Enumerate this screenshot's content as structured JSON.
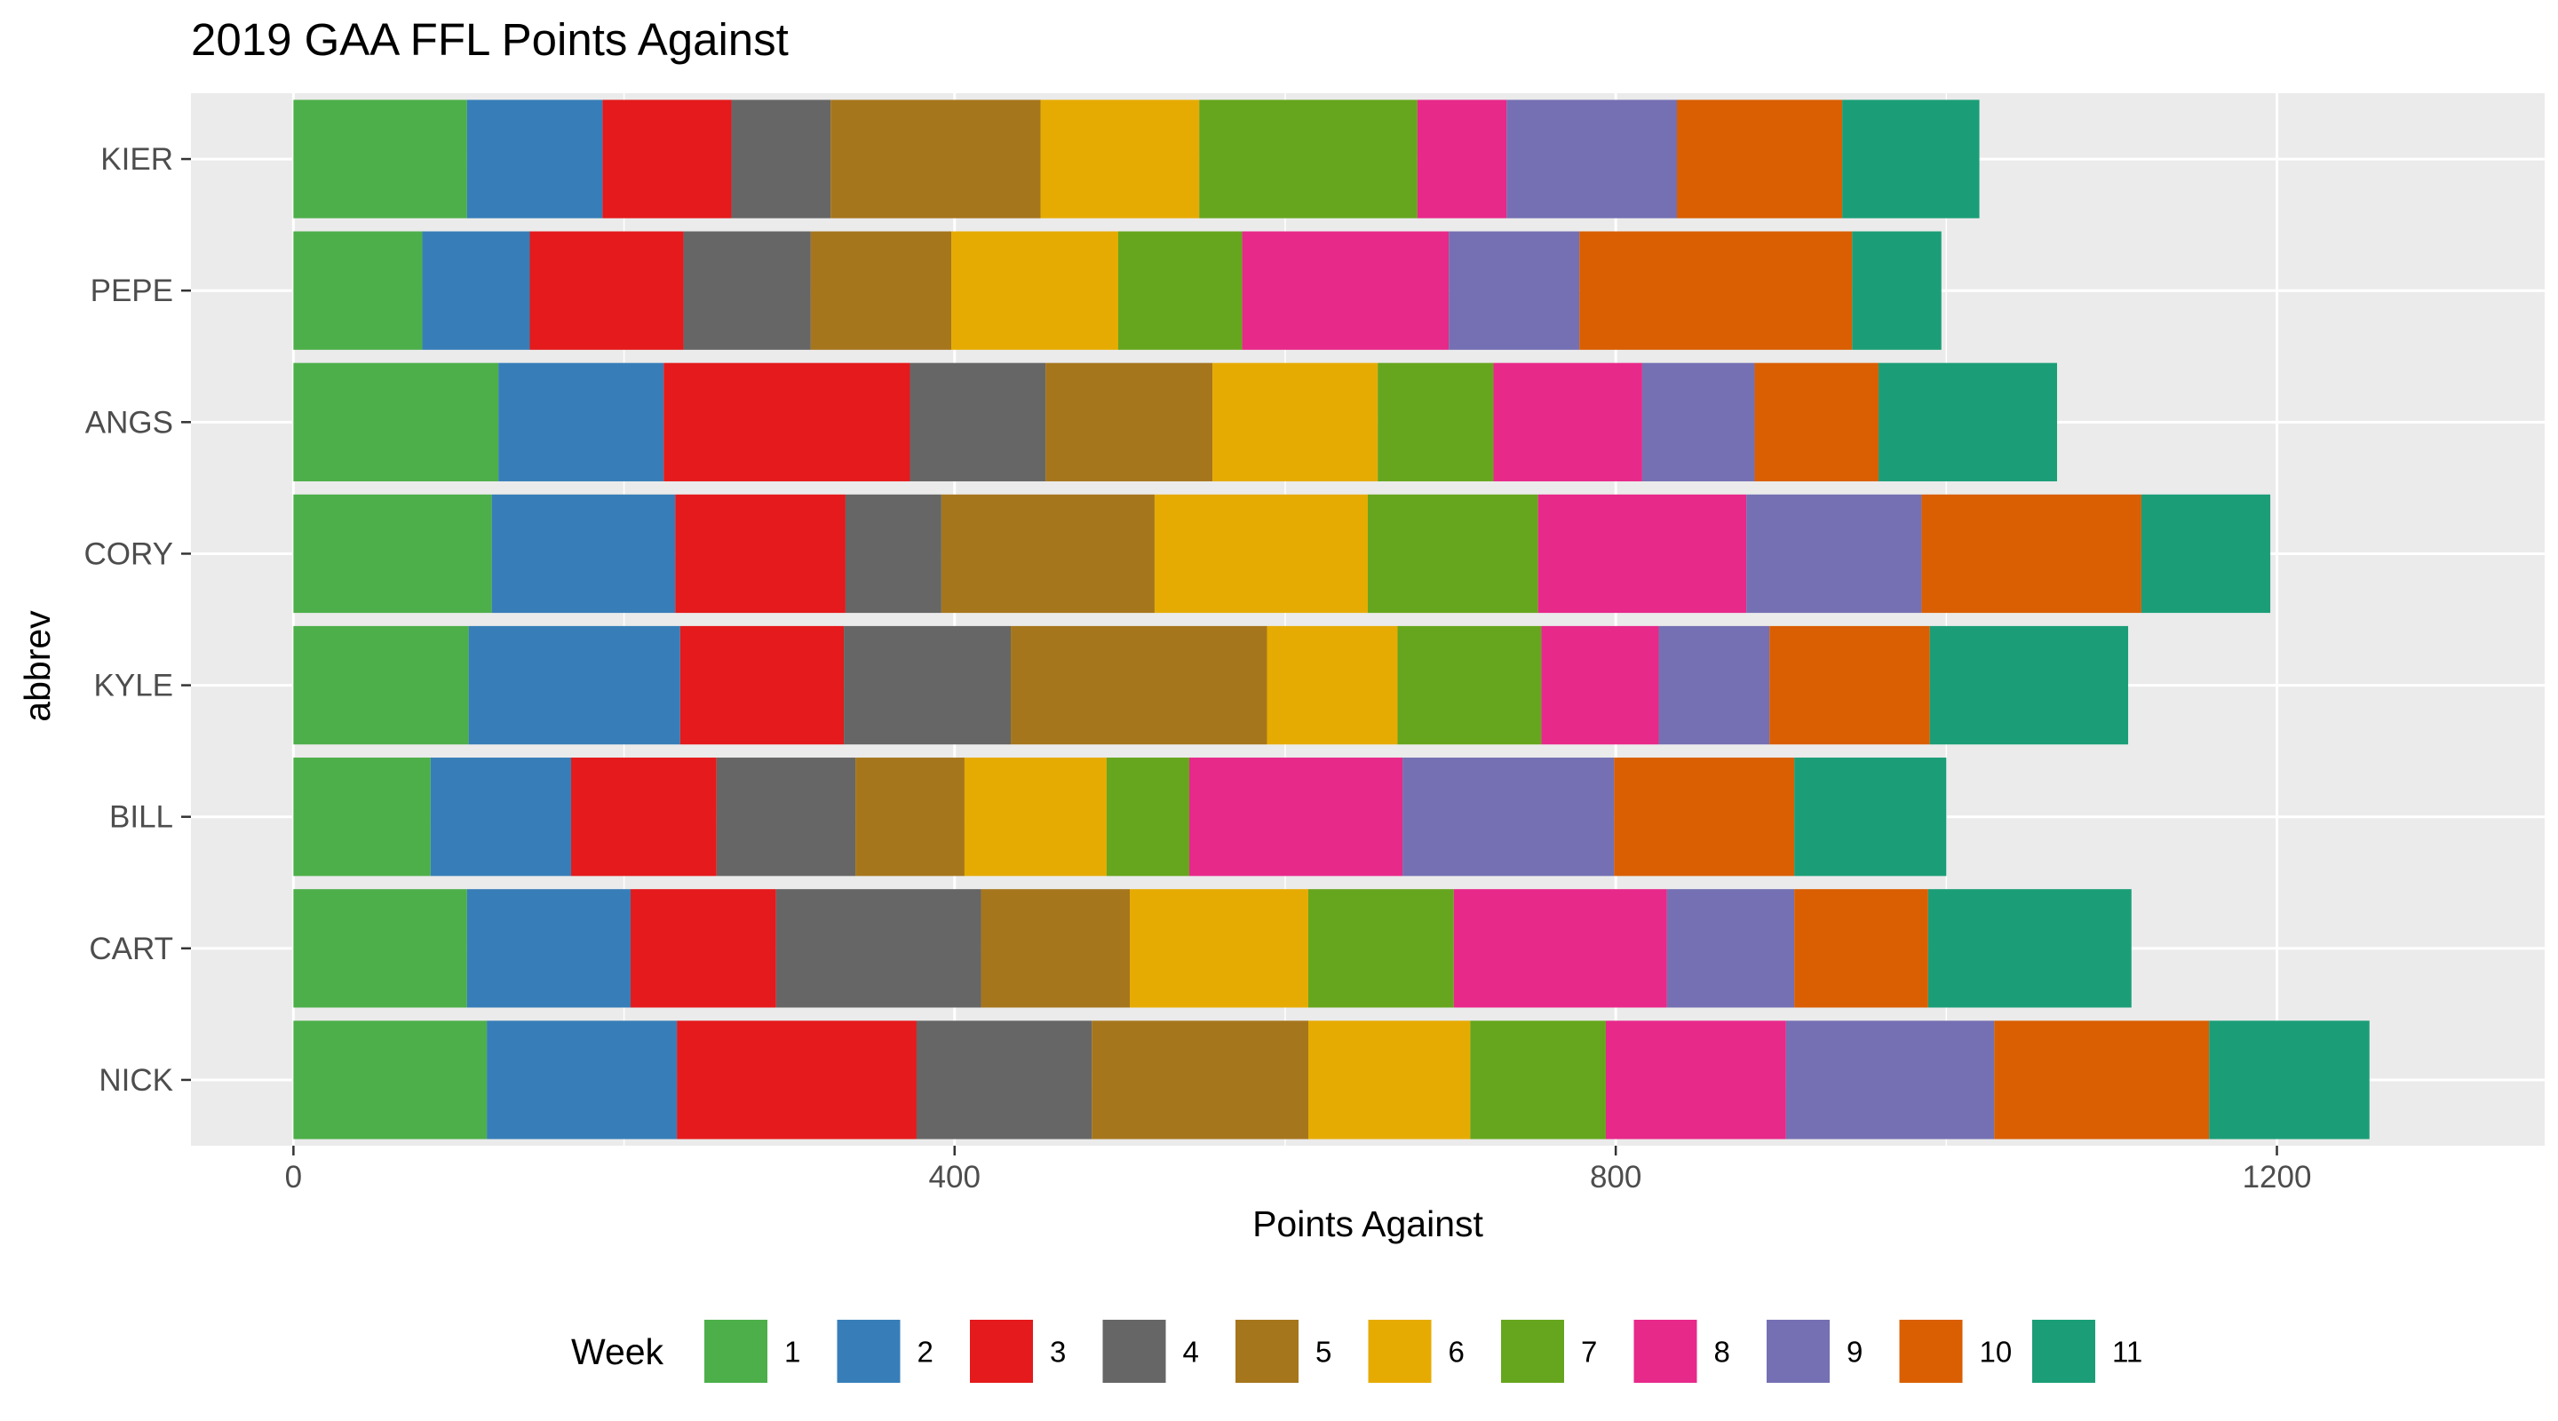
{
  "chart_data": {
    "type": "bar",
    "orientation": "horizontal",
    "stacked": true,
    "title": "2019 GAA FFL Points Against",
    "xlabel": "Points Against",
    "ylabel": "abbrev",
    "xlim": [
      -62,
      1362
    ],
    "xticks": [
      0,
      400,
      800,
      1200
    ],
    "grid": true,
    "legend": {
      "title": "Week",
      "position": "bottom"
    },
    "categories": [
      "KIER",
      "PEPE",
      "ANGS",
      "CORY",
      "KYLE",
      "BILL",
      "CART",
      "NICK"
    ],
    "series": [
      {
        "name": "1",
        "color": "#4DAF4A",
        "values": [
          105,
          78,
          124,
          120,
          106,
          83,
          105,
          117
        ]
      },
      {
        "name": "2",
        "color": "#377EB8",
        "values": [
          82,
          65,
          100,
          111,
          128,
          85,
          99,
          115
        ]
      },
      {
        "name": "3",
        "color": "#E41A1C",
        "values": [
          78,
          93,
          149,
          103,
          99,
          88,
          88,
          145
        ]
      },
      {
        "name": "4",
        "color": "#666666",
        "values": [
          60,
          77,
          82,
          58,
          101,
          84,
          124,
          106
        ]
      },
      {
        "name": "5",
        "color": "#A6761D",
        "values": [
          127,
          85,
          101,
          129,
          155,
          66,
          90,
          131
        ]
      },
      {
        "name": "6",
        "color": "#E6AB02",
        "values": [
          96,
          101,
          100,
          129,
          79,
          86,
          108,
          98
        ]
      },
      {
        "name": "7",
        "color": "#66A61E",
        "values": [
          132,
          75,
          70,
          103,
          87,
          50,
          88,
          82
        ]
      },
      {
        "name": "8",
        "color": "#E7298A",
        "values": [
          54,
          125,
          90,
          126,
          71,
          129,
          129,
          109
        ]
      },
      {
        "name": "9",
        "color": "#7570B3",
        "values": [
          103,
          79,
          68,
          106,
          67,
          128,
          77,
          126
        ]
      },
      {
        "name": "10",
        "color": "#D95F02",
        "values": [
          100,
          165,
          75,
          133,
          97,
          109,
          81,
          130
        ]
      },
      {
        "name": "11",
        "color": "#1B9E77",
        "values": [
          83,
          54,
          108,
          78,
          120,
          92,
          123,
          97
        ]
      }
    ]
  },
  "style": {
    "panel_background": "#EBEBEB",
    "grid_color": "#FFFFFF",
    "tick_color": "#333333"
  }
}
